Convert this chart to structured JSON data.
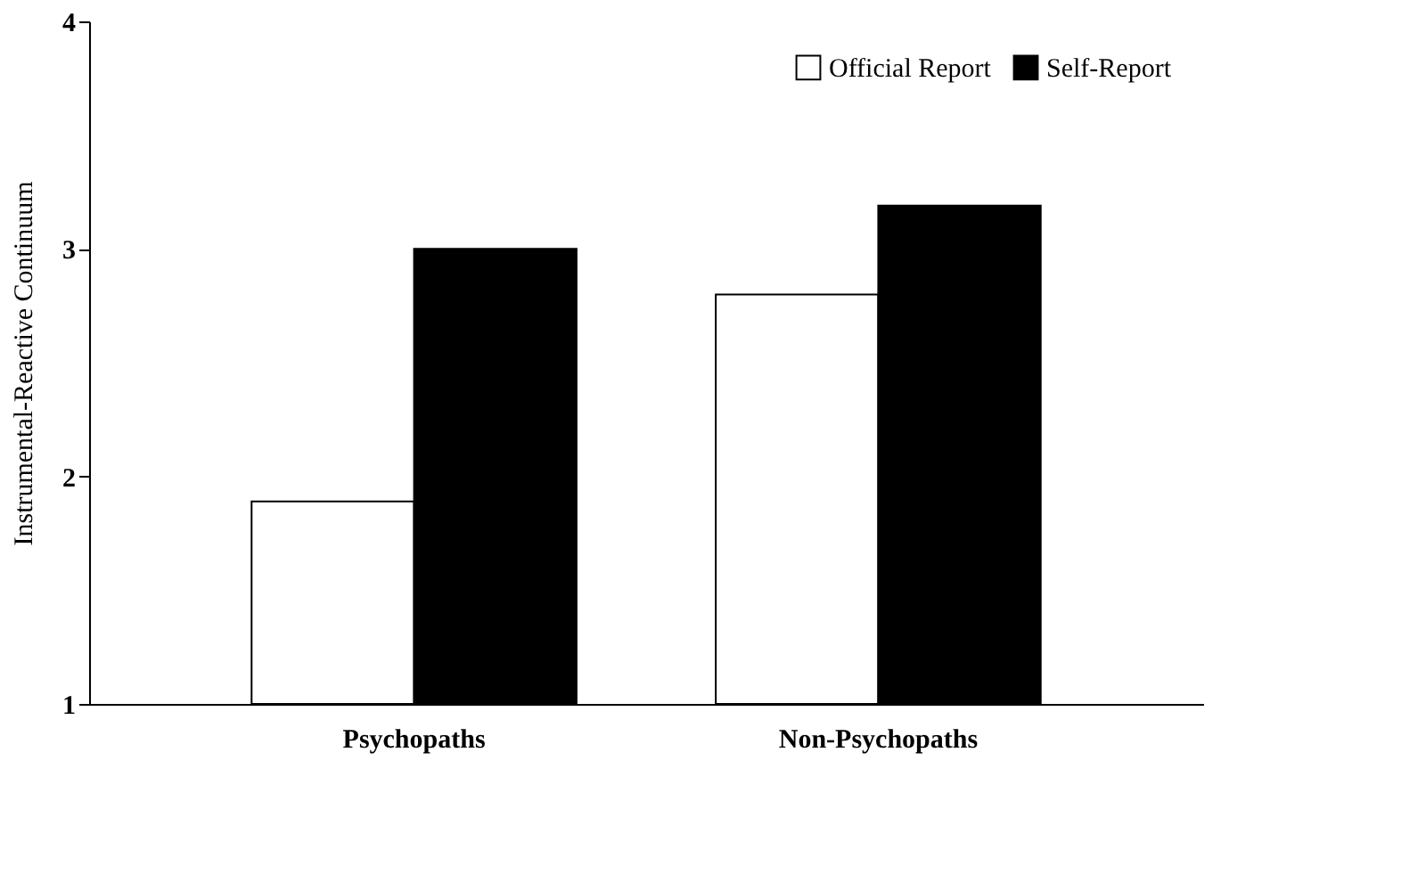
{
  "chart_data": {
    "type": "bar",
    "ylabel": "Instrumental-Reactive Continuum",
    "categories": [
      "Psychopaths",
      "Non-Psychopaths"
    ],
    "series": [
      {
        "name": "Official Report",
        "color": "#ffffff",
        "values": [
          1.89,
          2.8
        ]
      },
      {
        "name": "Self-Report",
        "color": "#000000",
        "values": [
          3.0,
          3.19
        ]
      }
    ],
    "ylim": [
      1,
      4
    ],
    "yticks": [
      1,
      2,
      3,
      4
    ],
    "grid": false,
    "legend": "top right"
  }
}
